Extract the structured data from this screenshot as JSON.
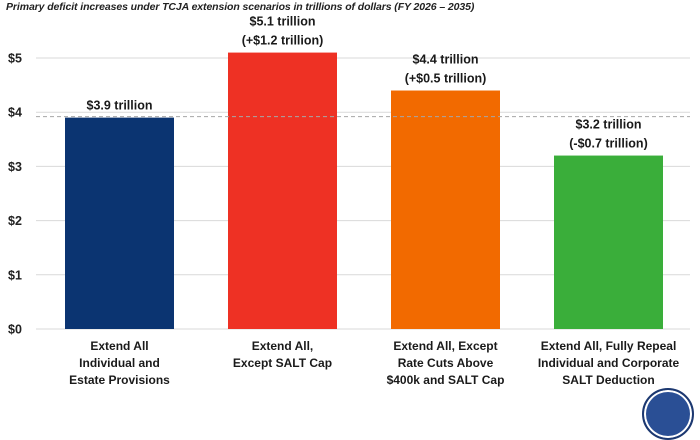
{
  "chart_data": {
    "type": "bar",
    "title": "Primary deficit increases under TCJA extension scenarios in trillions of dollars (FY 2026 – 2035)",
    "xlabel": "",
    "ylabel": "",
    "ylim": [
      0,
      5
    ],
    "yticks": [
      0,
      1,
      2,
      3,
      4,
      5
    ],
    "ytick_labels": [
      "$0",
      "$1",
      "$2",
      "$3",
      "$4",
      "$5"
    ],
    "grid": true,
    "reference_line": {
      "value": 3.9,
      "style": "dashed"
    },
    "categories": [
      [
        "Extend All",
        "Individual and",
        "Estate Provisions"
      ],
      [
        "Extend All,",
        "Except SALT Cap"
      ],
      [
        "Extend All, Except",
        "Rate Cuts Above",
        "$400k and SALT Cap"
      ],
      [
        "Extend All, Fully Repeal",
        "Individual and Corporate",
        "SALT Deduction"
      ]
    ],
    "values": [
      3.9,
      5.1,
      4.4,
      3.2
    ],
    "data_labels": [
      [
        "$3.9 trillion"
      ],
      [
        "$5.1 trillion",
        "(+$1.2 trillion)"
      ],
      [
        "$4.4 trillion",
        "(+$0.5 trillion)"
      ],
      [
        "$3.2 trillion",
        "(-$0.7 trillion)"
      ]
    ],
    "colors": [
      "#0b3471",
      "#ee3124",
      "#f26a00",
      "#3aae3a"
    ]
  },
  "logo": {
    "icon": "organization-seal-icon"
  }
}
